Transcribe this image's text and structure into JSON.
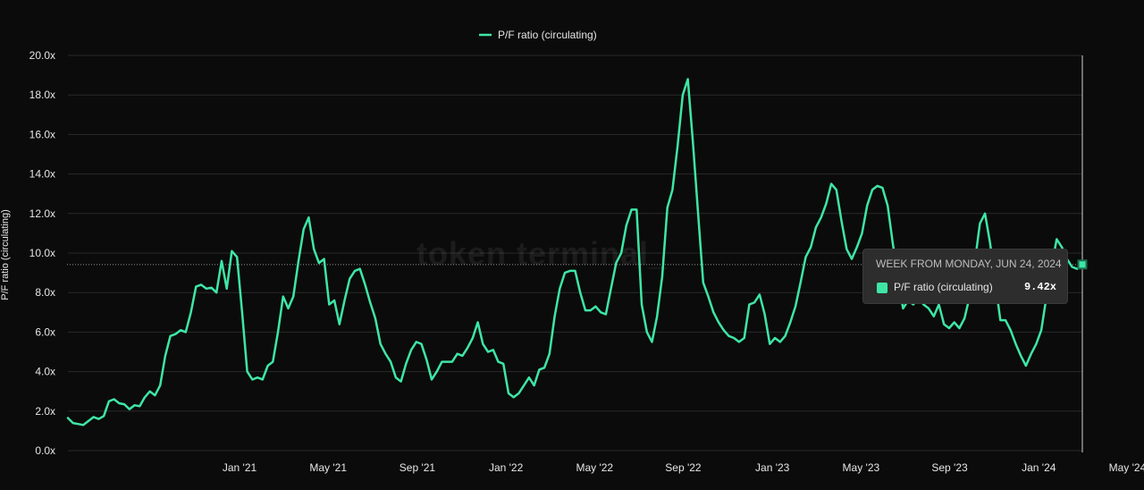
{
  "colors": {
    "series": "#3ee6a6",
    "background": "#0b0b0b",
    "grid": "#2a2a2a",
    "tooltip_bg": "#2d2d2d"
  },
  "watermark": "token terminal_",
  "chart_data": {
    "type": "line",
    "ylabel": "P/F ratio (circulating)",
    "ylim": [
      0,
      20
    ],
    "yticks": [
      "0.0x",
      "2.0x",
      "4.0x",
      "6.0x",
      "8.0x",
      "10.0x",
      "12.0x",
      "14.0x",
      "16.0x",
      "18.0x",
      "20.0x"
    ],
    "xticks": [
      "Jan '21",
      "May '21",
      "Sep '21",
      "Jan '22",
      "May '22",
      "Sep '22",
      "Jan '23",
      "May '23",
      "Sep '23",
      "Jan '24",
      "May '24"
    ],
    "xtick_positions": [
      33.5,
      50.8,
      68.2,
      85.5,
      102.8,
      120.1,
      137.5,
      154.8,
      172.1,
      189.5,
      206.8
    ],
    "legend": "top-center",
    "grid": true,
    "series": [
      {
        "name": "P/F ratio (circulating)",
        "x_start": "2020-07-13",
        "x_unit": "week",
        "values": [
          1.65,
          1.4,
          1.35,
          1.3,
          1.5,
          1.7,
          1.6,
          1.75,
          2.5,
          2.6,
          2.4,
          2.35,
          2.1,
          2.3,
          2.25,
          2.7,
          3.0,
          2.8,
          3.3,
          4.8,
          5.8,
          5.9,
          6.1,
          6.0,
          7.0,
          8.3,
          8.4,
          8.2,
          8.25,
          8.0,
          9.6,
          8.2,
          10.1,
          9.8,
          7.0,
          4.0,
          3.6,
          3.7,
          3.6,
          4.3,
          4.5,
          6.0,
          7.8,
          7.2,
          7.8,
          9.6,
          11.2,
          11.8,
          10.2,
          9.5,
          9.7,
          7.4,
          7.6,
          6.4,
          7.6,
          8.7,
          9.1,
          9.2,
          8.4,
          7.5,
          6.7,
          5.4,
          4.9,
          4.5,
          3.7,
          3.5,
          4.4,
          5.1,
          5.5,
          5.4,
          4.6,
          3.6,
          4.0,
          4.5,
          4.5,
          4.5,
          4.9,
          4.8,
          5.2,
          5.7,
          6.5,
          5.4,
          5.0,
          5.1,
          4.5,
          4.4,
          2.9,
          2.7,
          2.9,
          3.3,
          3.7,
          3.3,
          4.1,
          4.2,
          4.9,
          6.8,
          8.2,
          9.0,
          9.1,
          9.1,
          8.0,
          7.1,
          7.1,
          7.3,
          7.0,
          6.9,
          8.2,
          9.5,
          10.0,
          11.4,
          12.2,
          12.2,
          7.4,
          6.0,
          5.5,
          6.8,
          8.8,
          12.3,
          13.2,
          15.4,
          18.0,
          18.8,
          15.6,
          12.0,
          8.5,
          7.8,
          7.0,
          6.5,
          6.1,
          5.8,
          5.7,
          5.5,
          5.7,
          7.4,
          7.5,
          7.9,
          6.9,
          5.4,
          5.7,
          5.5,
          5.8,
          6.5,
          7.3,
          8.5,
          9.8,
          10.3,
          11.3,
          11.8,
          12.5,
          13.5,
          13.2,
          11.6,
          10.2,
          9.7,
          10.3,
          11.0,
          12.4,
          13.2,
          13.4,
          13.3,
          12.4,
          10.5,
          8.8,
          7.2,
          7.6,
          7.4,
          7.7,
          7.4,
          7.2,
          6.8,
          7.4,
          6.4,
          6.2,
          6.5,
          6.2,
          6.7,
          7.8,
          9.5,
          11.5,
          12.0,
          10.5,
          8.5,
          6.6,
          6.6,
          6.1,
          5.4,
          4.8,
          4.3,
          4.9,
          5.4,
          6.1,
          7.8,
          9.3,
          10.7,
          10.3,
          9.7,
          9.3,
          9.2,
          9.42
        ]
      }
    ],
    "tooltip": {
      "title": "WEEK FROM MONDAY, JUN 24, 2024",
      "series_name": "P/F ratio (circulating)",
      "value": "9.42x"
    }
  }
}
